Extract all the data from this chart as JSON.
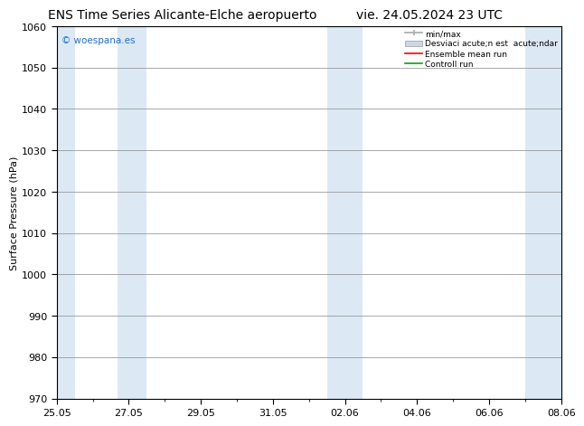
{
  "title_left": "ENS Time Series Alicante-Elche aeropuerto",
  "title_right": "vie. 24.05.2024 23 UTC",
  "ylabel": "Surface Pressure (hPa)",
  "ylim": [
    970,
    1060
  ],
  "yticks": [
    970,
    980,
    990,
    1000,
    1010,
    1020,
    1030,
    1040,
    1050,
    1060
  ],
  "xlim_start": 0,
  "xlim_end": 14,
  "xtick_labels": [
    "25.05",
    "27.05",
    "29.05",
    "31.05",
    "02.06",
    "04.06",
    "06.06",
    "08.06"
  ],
  "xtick_positions": [
    0,
    2,
    4,
    6,
    8,
    10,
    12,
    14
  ],
  "watermark": "© woespana.es",
  "watermark_color": "#1E6FCC",
  "background_color": "#ffffff",
  "plot_bg_color": "#ffffff",
  "legend_entries": [
    "min/max",
    "Desviaci acute;n est  acute;ndar",
    "Ensemble mean run",
    "Controll run"
  ],
  "legend_colors_handle": [
    "#aaaaaa",
    "#c8d8e8",
    "#ff0000",
    "#00aa00"
  ],
  "band_color": "#dce9f5",
  "grid_color": "#888888",
  "title_fontsize": 10,
  "axis_fontsize": 8,
  "tick_fontsize": 8,
  "band_starts": [
    0.0,
    1.7,
    7.5,
    13.0
  ],
  "band_ends": [
    0.5,
    2.5,
    8.5,
    14.0
  ]
}
